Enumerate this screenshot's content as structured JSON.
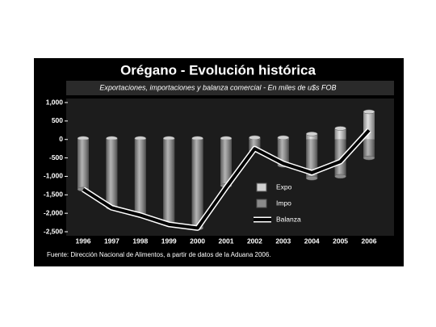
{
  "chart_data": {
    "type": "bar-line",
    "title": "Orégano - Evolución histórica",
    "subtitle": "Exportaciones, importaciones y balanza comercial - En miles de u$s FOB",
    "source": "Fuente: Dirección Nacional de Alimentos, a partir de datos de la Aduana 2006.",
    "categories": [
      "1996",
      "1997",
      "1998",
      "1999",
      "2000",
      "2001",
      "2002",
      "2003",
      "2004",
      "2005",
      "2006"
    ],
    "series": [
      {
        "name": "Expo",
        "kind": "bar",
        "color": "#d0d0d0",
        "values": [
          30,
          30,
          30,
          30,
          30,
          30,
          50,
          50,
          150,
          300,
          750
        ]
      },
      {
        "name": "Impo",
        "kind": "bar",
        "color": "#8a8a8a",
        "values": [
          -1350,
          -1850,
          -2050,
          -2300,
          -2400,
          -1250,
          -300,
          -700,
          -1050,
          -1000,
          -500
        ]
      },
      {
        "name": "Balanza",
        "kind": "line",
        "color": "#000000",
        "values": [
          -1350,
          -1850,
          -2050,
          -2300,
          -2400,
          -1300,
          -250,
          -650,
          -900,
          -600,
          250
        ]
      }
    ],
    "ylim": [
      -2500,
      1000
    ],
    "yticks": [
      {
        "value": 1000,
        "label": "1,000"
      },
      500,
      0,
      -500,
      {
        "value": -1000,
        "label": "-1,000"
      },
      {
        "value": -1500,
        "label": "-1,500"
      },
      {
        "value": -2000,
        "label": "-2,000"
      },
      {
        "value": -2500,
        "label": "-2,500"
      }
    ]
  }
}
